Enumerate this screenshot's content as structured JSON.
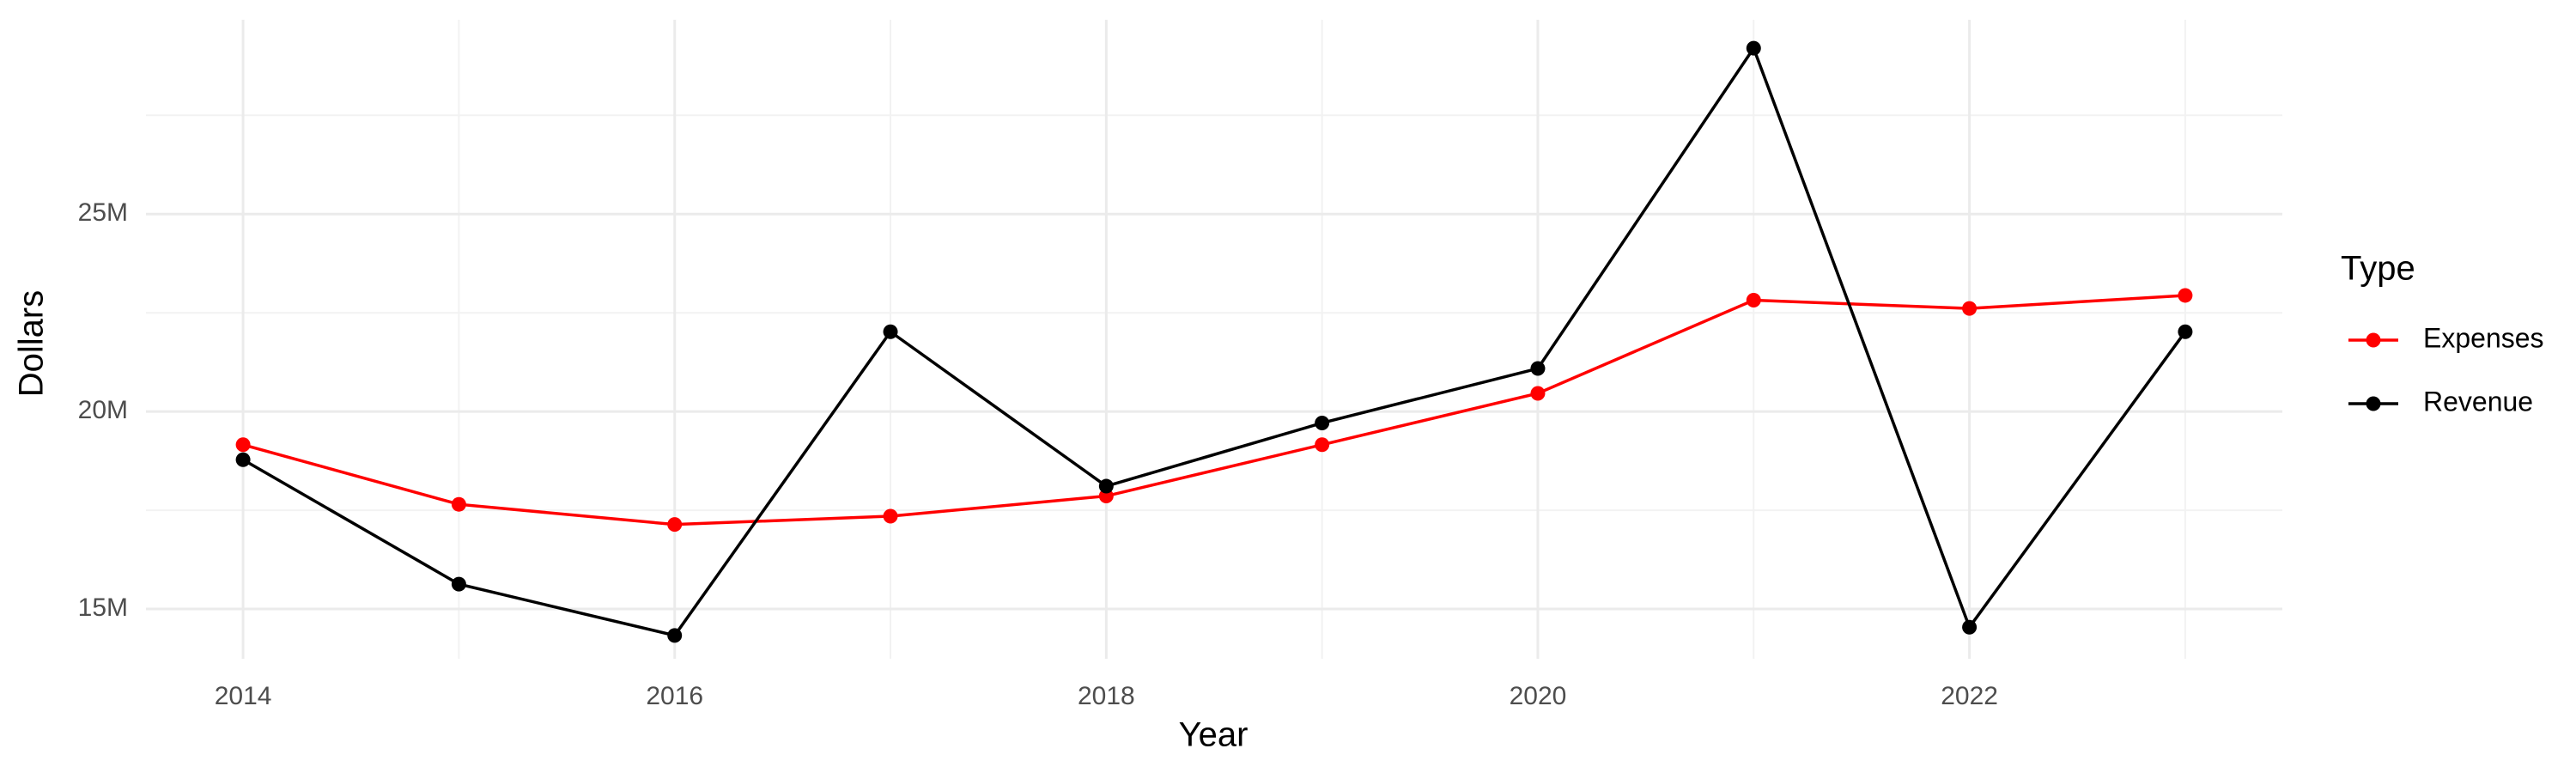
{
  "chart_data": {
    "type": "line",
    "x_label": "Year",
    "y_label": "Dollars",
    "legend_title": "Type",
    "x": [
      2014,
      2015,
      2016,
      2017,
      2018,
      2019,
      2020,
      2021,
      2022,
      2023
    ],
    "series": [
      {
        "name": "Expenses",
        "color": "#ff0000",
        "values": [
          19160000,
          17650000,
          17140000,
          17350000,
          17860000,
          19160000,
          20460000,
          22820000,
          22610000,
          22940000
        ]
      },
      {
        "name": "Revenue",
        "color": "#000000",
        "values": [
          18780000,
          15630000,
          14330000,
          22020000,
          18110000,
          19710000,
          21090000,
          29200000,
          14540000,
          22020000
        ]
      }
    ],
    "xlim": [
      2013.55,
      2023.45
    ],
    "xticks": [
      2014,
      2016,
      2018,
      2020,
      2022
    ],
    "ylim": [
      13740000,
      29920000
    ],
    "yticks": [
      {
        "value": 15000000,
        "label": "15M"
      },
      {
        "value": 20000000,
        "label": "20M"
      },
      {
        "value": 25000000,
        "label": "25M"
      }
    ],
    "grid": true,
    "legend_position": "right"
  }
}
